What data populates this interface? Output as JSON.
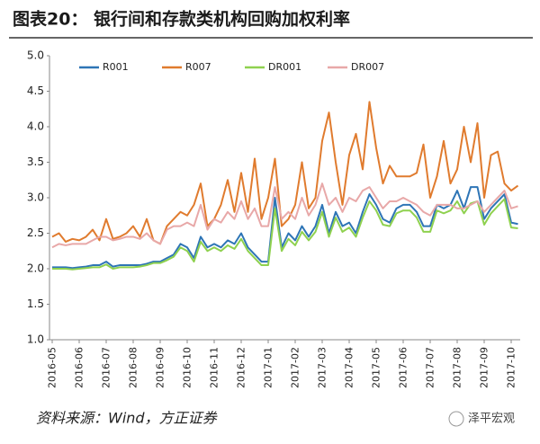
{
  "chart_data": {
    "type": "line",
    "title": "图表20：  银行间和存款类机构回购加权利率",
    "source": "资料来源：Wind，方正证券",
    "watermark": "泽平宏观",
    "categories": [
      "2016-05",
      null,
      null,
      null,
      "2016-06",
      null,
      null,
      null,
      "2016-07",
      null,
      null,
      null,
      "2016-08",
      null,
      null,
      null,
      "2016-09",
      null,
      null,
      null,
      "2016-10",
      null,
      null,
      null,
      "2016-11",
      null,
      null,
      null,
      "2016-12",
      null,
      null,
      null,
      "2017-01",
      null,
      null,
      null,
      "2017-02",
      null,
      null,
      null,
      "2017-03",
      null,
      null,
      null,
      "2017-04",
      null,
      null,
      null,
      "2017-05",
      null,
      null,
      null,
      "2017-06",
      null,
      null,
      null,
      "2017-07",
      null,
      null,
      null,
      "2017-08",
      null,
      null,
      null,
      "2017-09",
      null,
      null,
      null,
      "2017-10",
      null
    ],
    "series": [
      {
        "name": "R001",
        "color": "#2e75b6",
        "values": [
          2.02,
          2.02,
          2.02,
          2.01,
          2.02,
          2.03,
          2.05,
          2.05,
          2.1,
          2.03,
          2.05,
          2.05,
          2.05,
          2.05,
          2.07,
          2.1,
          2.1,
          2.15,
          2.2,
          2.35,
          2.3,
          2.15,
          2.45,
          2.3,
          2.35,
          2.3,
          2.4,
          2.35,
          2.5,
          2.3,
          2.2,
          2.1,
          2.1,
          3.0,
          2.3,
          2.5,
          2.4,
          2.6,
          2.45,
          2.6,
          2.9,
          2.5,
          2.8,
          2.6,
          2.65,
          2.5,
          2.8,
          3.05,
          2.9,
          2.7,
          2.65,
          2.85,
          2.9,
          2.9,
          2.8,
          2.6,
          2.6,
          2.9,
          2.85,
          2.9,
          3.1,
          2.85,
          3.15,
          3.15,
          2.7,
          2.85,
          2.95,
          3.05,
          2.65,
          2.63
        ]
      },
      {
        "name": "R007",
        "color": "#e07b2e",
        "values": [
          2.45,
          2.5,
          2.38,
          2.42,
          2.4,
          2.45,
          2.55,
          2.4,
          2.7,
          2.42,
          2.45,
          2.5,
          2.6,
          2.45,
          2.7,
          2.4,
          2.35,
          2.6,
          2.7,
          2.8,
          2.75,
          2.9,
          3.2,
          2.6,
          2.7,
          2.9,
          3.25,
          2.8,
          3.35,
          2.8,
          3.55,
          2.7,
          3.0,
          3.55,
          2.6,
          2.7,
          2.9,
          3.5,
          2.85,
          3.0,
          3.8,
          4.2,
          3.5,
          2.9,
          3.6,
          3.9,
          3.4,
          4.35,
          3.7,
          3.2,
          3.45,
          3.3,
          3.3,
          3.3,
          3.35,
          3.75,
          3.0,
          3.3,
          3.8,
          3.2,
          3.4,
          4.0,
          3.5,
          4.05,
          3.0,
          3.6,
          3.65,
          3.2,
          3.1,
          3.17
        ]
      },
      {
        "name": "DR001",
        "color": "#8fd14f",
        "values": [
          2.0,
          2.0,
          2.0,
          1.99,
          2.0,
          2.01,
          2.02,
          2.02,
          2.06,
          2.0,
          2.02,
          2.02,
          2.02,
          2.03,
          2.05,
          2.08,
          2.08,
          2.12,
          2.17,
          2.3,
          2.25,
          2.1,
          2.38,
          2.25,
          2.3,
          2.25,
          2.33,
          2.28,
          2.42,
          2.25,
          2.15,
          2.05,
          2.05,
          2.85,
          2.25,
          2.42,
          2.33,
          2.52,
          2.4,
          2.52,
          2.8,
          2.45,
          2.72,
          2.52,
          2.58,
          2.45,
          2.72,
          2.95,
          2.82,
          2.62,
          2.6,
          2.78,
          2.82,
          2.82,
          2.72,
          2.52,
          2.52,
          2.82,
          2.78,
          2.82,
          2.95,
          2.78,
          2.92,
          2.95,
          2.62,
          2.78,
          2.88,
          2.98,
          2.58,
          2.57
        ]
      },
      {
        "name": "DR007",
        "color": "#e8a8a8",
        "values": [
          2.3,
          2.35,
          2.33,
          2.35,
          2.35,
          2.35,
          2.4,
          2.45,
          2.45,
          2.4,
          2.42,
          2.45,
          2.45,
          2.42,
          2.5,
          2.4,
          2.35,
          2.55,
          2.6,
          2.6,
          2.65,
          2.6,
          2.9,
          2.55,
          2.7,
          2.65,
          2.8,
          2.7,
          2.95,
          2.7,
          2.85,
          2.6,
          2.6,
          3.15,
          2.7,
          2.8,
          2.7,
          3.0,
          2.75,
          2.9,
          3.2,
          2.9,
          3.0,
          2.8,
          3.0,
          2.95,
          3.1,
          3.15,
          3.0,
          2.85,
          2.95,
          2.95,
          3.0,
          2.95,
          2.9,
          2.8,
          2.75,
          2.9,
          2.9,
          2.9,
          2.85,
          2.85,
          2.9,
          2.95,
          2.8,
          2.9,
          3.0,
          3.1,
          2.85,
          2.88
        ]
      }
    ],
    "ylim": [
      1,
      5
    ],
    "yticks": [
      {
        "value": 1,
        "label": "1.0"
      },
      1.5,
      {
        "value": 2,
        "label": "2.0"
      },
      2.5,
      {
        "value": 3,
        "label": "3.0"
      },
      3.5,
      {
        "value": 4,
        "label": "4.0"
      },
      4.5,
      {
        "value": 5,
        "label": "5.0"
      }
    ],
    "grid": false,
    "legend": "top"
  }
}
